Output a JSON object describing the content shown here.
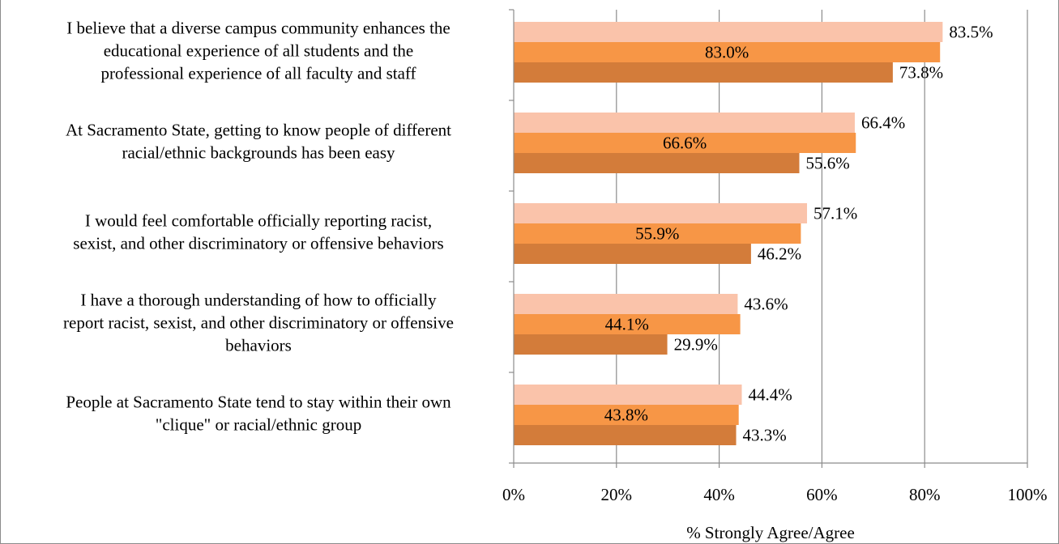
{
  "chart_data": {
    "type": "bar",
    "orientation": "horizontal",
    "categories": [
      [
        "I believe that a diverse campus community enhances the",
        "educational experience of all students and the",
        "professional experience of all faculty and staff"
      ],
      [
        "At Sacramento State, getting to know people of different",
        "racial/ethnic backgrounds has been easy"
      ],
      [
        "I would feel comfortable officially reporting racist,",
        "sexist, and other discriminatory or offensive behaviors"
      ],
      [
        "I have a thorough understanding of how to officially",
        "report racist, sexist, and other discriminatory or offensive",
        "behaviors"
      ],
      [
        "People at Sacramento State tend to stay within their own",
        "\"clique\" or racial/ethnic group"
      ]
    ],
    "series": [
      {
        "values": [
          83.5,
          66.4,
          57.1,
          43.6,
          44.4
        ],
        "labels": [
          "83.5%",
          "66.4%",
          "57.1%",
          "43.6%",
          "44.4%"
        ],
        "color": "#fac3aa"
      },
      {
        "values": [
          83.0,
          66.6,
          55.9,
          44.1,
          43.8
        ],
        "labels": [
          "83.0%",
          "66.6%",
          "55.9%",
          "44.1%",
          "43.8%"
        ],
        "color": "#f79646"
      },
      {
        "values": [
          73.8,
          55.6,
          46.2,
          29.9,
          43.3
        ],
        "labels": [
          "73.8%",
          "55.6%",
          "46.2%",
          "29.9%",
          "43.3%"
        ],
        "color": "#d37c3a"
      }
    ],
    "xlim": [
      0,
      100
    ],
    "xticks": [
      0,
      20,
      40,
      60,
      80,
      100
    ],
    "xtick_labels": [
      "0%",
      "20%",
      "40%",
      "60%",
      "80%",
      "100%"
    ],
    "xlabel": "% Strongly Agree/Agree",
    "grid": "vertical",
    "legend": "none"
  }
}
